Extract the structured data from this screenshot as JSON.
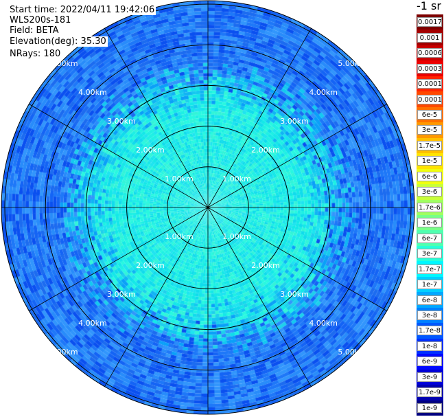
{
  "info": {
    "start_time": "Start time: 2022/04/11 19:42:06",
    "device": "WLS200s-181",
    "field": "Field: BETA",
    "elevation": "Elevation(deg): 35.30",
    "nrays": "NRays: 180"
  },
  "unit_label": "-1 sr",
  "range_rings": {
    "labels": [
      "1.00km",
      "2.00km",
      "3.00km",
      "4.00km",
      "5.00km"
    ],
    "values_km": [
      1,
      2,
      3,
      4,
      5
    ]
  },
  "radial_lines_count": 12,
  "legend": [
    {
      "label": "0.0017",
      "color": "#7d0000"
    },
    {
      "label": "0.001",
      "color": "#a40000"
    },
    {
      "label": "0.0006",
      "color": "#c80000"
    },
    {
      "label": "0.0003",
      "color": "#ec0000"
    },
    {
      "label": "0.00017",
      "color": "#ff2400"
    },
    {
      "label": "0.0001",
      "color": "#ff4800"
    },
    {
      "label": "6e-5",
      "color": "#ff7000"
    },
    {
      "label": "3e-5",
      "color": "#ff9800"
    },
    {
      "label": "1.7e-5",
      "color": "#ffc000"
    },
    {
      "label": "1e-5",
      "color": "#ffe400"
    },
    {
      "label": "6e-6",
      "color": "#f0ff10"
    },
    {
      "label": "3e-6",
      "color": "#c8ff38"
    },
    {
      "label": "1.7e-6",
      "color": "#a0ff60"
    },
    {
      "label": "1e-6",
      "color": "#78ff88"
    },
    {
      "label": "6e-7",
      "color": "#50ffb0"
    },
    {
      "label": "3e-7",
      "color": "#28ffd8"
    },
    {
      "label": "1.7e-7",
      "color": "#00f8ff"
    },
    {
      "label": "1e-7",
      "color": "#00d0ff"
    },
    {
      "label": "6e-8",
      "color": "#00a8ff"
    },
    {
      "label": "3e-8",
      "color": "#0080ff"
    },
    {
      "label": "1.7e-8",
      "color": "#0058ff"
    },
    {
      "label": "1e-8",
      "color": "#0030ff"
    },
    {
      "label": "6e-9",
      "color": "#0008ff"
    },
    {
      "label": "3e-9",
      "color": "#0000d8"
    },
    {
      "label": "1.7e-9",
      "color": "#0000b0"
    },
    {
      "label": "1e-9",
      "color": "#000080"
    }
  ]
}
